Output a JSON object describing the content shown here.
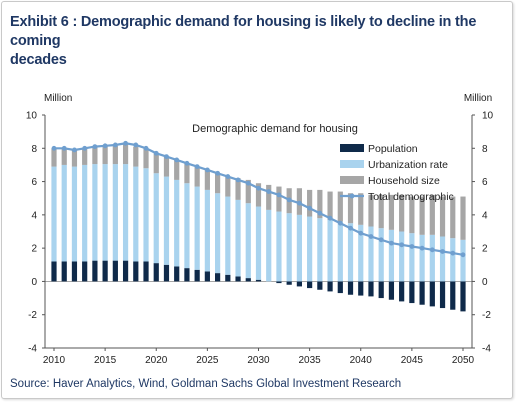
{
  "title_line1": "Exhibit 6 : Demographic demand for housing is likely to decline in the coming",
  "title_line2": "decades",
  "source": "Source: Haver Analytics, Wind, Goldman Sachs Global Investment Research",
  "colors": {
    "population": "#0f2a4a",
    "urbanization": "#a9d3ee",
    "household": "#a6a6a6",
    "total": "#6f9fcf",
    "title": "#1f3864"
  },
  "chart_data": {
    "type": "bar",
    "inner_title": "Demographic  demand for housing",
    "ylabel_left": "Million",
    "ylabel_right": "Million",
    "ylim": [
      -4,
      10
    ],
    "yticks": [
      -4,
      -2,
      0,
      2,
      4,
      6,
      8,
      10
    ],
    "xticks": [
      "2010",
      "2015",
      "2020",
      "2025",
      "2030",
      "2035",
      "2040",
      "2045",
      "2050"
    ],
    "x": [
      2010,
      2011,
      2012,
      2013,
      2014,
      2015,
      2016,
      2017,
      2018,
      2019,
      2020,
      2021,
      2022,
      2023,
      2024,
      2025,
      2026,
      2027,
      2028,
      2029,
      2030,
      2031,
      2032,
      2033,
      2034,
      2035,
      2036,
      2037,
      2038,
      2039,
      2040,
      2041,
      2042,
      2043,
      2044,
      2045,
      2046,
      2047,
      2048,
      2049,
      2050
    ],
    "legend_position": "right",
    "series": [
      {
        "name": "Population",
        "kind": "bar",
        "values": [
          1.2,
          1.2,
          1.2,
          1.2,
          1.25,
          1.25,
          1.25,
          1.25,
          1.2,
          1.2,
          1.1,
          1.0,
          0.9,
          0.8,
          0.7,
          0.6,
          0.5,
          0.4,
          0.3,
          0.2,
          0.1,
          0.0,
          -0.1,
          -0.2,
          -0.3,
          -0.4,
          -0.5,
          -0.6,
          -0.7,
          -0.8,
          -0.85,
          -0.9,
          -1.0,
          -1.1,
          -1.2,
          -1.3,
          -1.4,
          -1.5,
          -1.6,
          -1.7,
          -1.8
        ]
      },
      {
        "name": "Urbanization rate",
        "kind": "bar",
        "values": [
          5.7,
          5.8,
          5.7,
          5.8,
          5.8,
          5.8,
          5.8,
          5.8,
          5.7,
          5.6,
          5.4,
          5.3,
          5.2,
          5.1,
          5.0,
          4.9,
          4.8,
          4.7,
          4.6,
          4.5,
          4.4,
          4.3,
          4.2,
          4.1,
          4.0,
          3.9,
          3.8,
          3.7,
          3.6,
          3.5,
          3.4,
          3.3,
          3.2,
          3.1,
          3.0,
          2.9,
          2.8,
          2.8,
          2.7,
          2.6,
          2.5
        ]
      },
      {
        "name": "Household size",
        "kind": "bar",
        "values": [
          1.1,
          1.0,
          1.0,
          1.0,
          1.0,
          1.1,
          1.1,
          1.2,
          1.2,
          1.2,
          1.2,
          1.2,
          1.2,
          1.2,
          1.2,
          1.2,
          1.2,
          1.2,
          1.3,
          1.4,
          1.4,
          1.5,
          1.5,
          1.5,
          1.6,
          1.6,
          1.7,
          1.7,
          1.8,
          1.8,
          1.9,
          1.9,
          2.0,
          2.1,
          2.2,
          2.2,
          2.3,
          2.4,
          2.4,
          2.5,
          2.6
        ]
      },
      {
        "name": "Total demographic",
        "kind": "line",
        "values": [
          8.0,
          8.0,
          7.9,
          8.0,
          8.1,
          8.15,
          8.2,
          8.3,
          8.2,
          8.0,
          7.7,
          7.5,
          7.3,
          7.1,
          6.9,
          6.7,
          6.5,
          6.3,
          6.1,
          5.9,
          5.6,
          5.4,
          5.2,
          4.9,
          4.7,
          4.4,
          4.1,
          3.8,
          3.5,
          3.2,
          2.9,
          2.7,
          2.5,
          2.3,
          2.2,
          2.1,
          2.0,
          1.9,
          1.8,
          1.7,
          1.6
        ]
      }
    ]
  }
}
